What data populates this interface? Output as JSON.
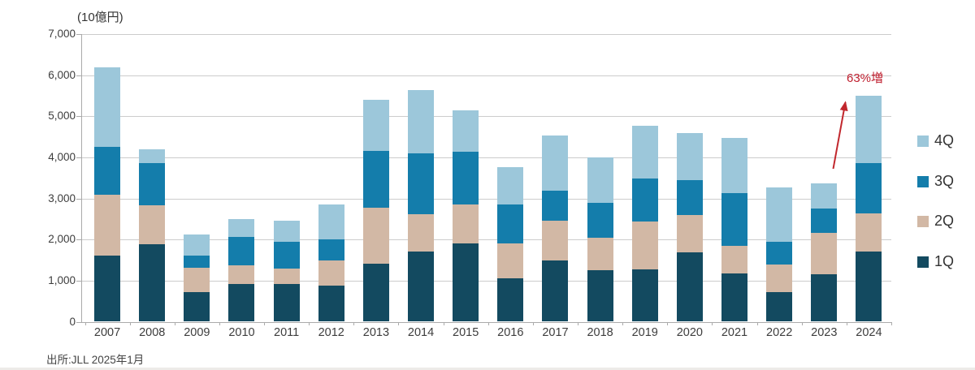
{
  "page": {
    "unit_label": "(10億円)",
    "source": "出所:JLL 2025年1月"
  },
  "chart_data": {
    "type": "bar",
    "stacked": true,
    "title": "(10億円)",
    "unit_label": "(10億円)",
    "categories": [
      "2007",
      "2008",
      "2009",
      "2010",
      "2011",
      "2012",
      "2013",
      "2014",
      "2015",
      "2016",
      "2017",
      "2018",
      "2019",
      "2020",
      "2021",
      "2022",
      "2023",
      "2024"
    ],
    "series": [
      {
        "name": "1Q",
        "color": "#134a60",
        "values": [
          1600,
          1890,
          720,
          920,
          920,
          870,
          1420,
          1710,
          1910,
          1050,
          1500,
          1260,
          1280,
          1680,
          1180,
          720,
          1160,
          1700
        ]
      },
      {
        "name": "2Q",
        "color": "#d2b8a5",
        "values": [
          1500,
          940,
          590,
          460,
          380,
          630,
          1360,
          910,
          950,
          860,
          950,
          780,
          1150,
          920,
          660,
          670,
          1010,
          930
        ]
      },
      {
        "name": "3Q",
        "color": "#147dab",
        "values": [
          1150,
          1040,
          300,
          690,
          650,
          510,
          1370,
          1480,
          1270,
          950,
          740,
          850,
          1050,
          840,
          1280,
          550,
          590,
          1240
        ]
      },
      {
        "name": "4Q",
        "color": "#9cc7da",
        "values": [
          1950,
          330,
          510,
          430,
          500,
          840,
          1250,
          1530,
          1020,
          900,
          1350,
          1110,
          1280,
          1150,
          1360,
          1330,
          610,
          1630
        ]
      }
    ],
    "totals": [
      6200,
      4200,
      2120,
      2500,
      2450,
      2850,
      5400,
      5630,
      5150,
      3760,
      4540,
      4000,
      4760,
      4590,
      4480,
      3270,
      3370,
      5500
    ],
    "ylim": [
      0,
      7000
    ],
    "ytick_step": 1000,
    "ytick_labels": [
      "0",
      "1,000",
      "2,000",
      "3,000",
      "4,000",
      "5,000",
      "6,000",
      "7,000"
    ],
    "grid": true,
    "legend_position": "right",
    "legend_order": [
      "4Q",
      "3Q",
      "2Q",
      "1Q"
    ],
    "annotation": {
      "text": "63%増",
      "color": "#bf1e2e",
      "arrow_color": "#c1272d"
    },
    "source": "出所:JLL 2025年1月"
  }
}
